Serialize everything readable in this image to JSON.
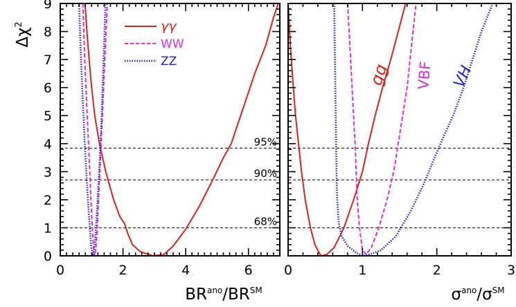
{
  "chart_data": [
    {
      "type": "line",
      "xlabel": "BR",
      "xlabel_sup": "ano",
      "xlabel_den": "BR",
      "xlabel_den_sup": "SM",
      "ylabel": "Δχ",
      "ylabel_sup": "2",
      "xlim": [
        0,
        7
      ],
      "ylim": [
        0,
        9
      ],
      "xticks": [
        0,
        2,
        4,
        6
      ],
      "yticks": [
        0,
        1,
        2,
        3,
        4,
        5,
        6,
        7,
        8,
        9
      ],
      "legend_position": "top-left",
      "series": [
        {
          "name": "γγ",
          "color": "#e0201c",
          "style": "solid",
          "points": [
            [
              0.79,
              9.0
            ],
            [
              0.85,
              8.0
            ],
            [
              0.92,
              7.0
            ],
            [
              1.0,
              6.0
            ],
            [
              1.1,
              5.0
            ],
            [
              1.25,
              4.0
            ],
            [
              1.45,
              3.0
            ],
            [
              1.7,
              2.0
            ],
            [
              1.9,
              1.4
            ],
            [
              2.05,
              1.15
            ],
            [
              2.15,
              0.8
            ],
            [
              2.3,
              0.4
            ],
            [
              2.55,
              0.15
            ],
            [
              2.95,
              0.0
            ],
            [
              3.3,
              0.04
            ],
            [
              3.6,
              0.35
            ],
            [
              4.0,
              0.95
            ],
            [
              4.45,
              1.8
            ],
            [
              4.9,
              2.8
            ],
            [
              5.2,
              3.5
            ],
            [
              5.45,
              4.0
            ],
            [
              5.75,
              5.0
            ],
            [
              6.05,
              6.0
            ],
            [
              6.2,
              6.5
            ],
            [
              6.55,
              7.5
            ],
            [
              6.8,
              8.5
            ],
            [
              6.95,
              9.0
            ]
          ]
        },
        {
          "name": "WW",
          "color": "#e22ed9",
          "style": "dashed",
          "points": [
            [
              0.72,
              9.0
            ],
            [
              0.75,
              8.0
            ],
            [
              0.78,
              7.0
            ],
            [
              0.82,
              6.0
            ],
            [
              0.86,
              5.0
            ],
            [
              0.9,
              4.0
            ],
            [
              0.94,
              3.0
            ],
            [
              0.98,
              2.0
            ],
            [
              1.02,
              1.0
            ],
            [
              1.06,
              0.3
            ],
            [
              1.1,
              0.0
            ],
            [
              1.14,
              0.3
            ],
            [
              1.18,
              1.0
            ],
            [
              1.22,
              2.0
            ],
            [
              1.26,
              3.0
            ],
            [
              1.3,
              4.0
            ],
            [
              1.34,
              5.0
            ],
            [
              1.38,
              6.0
            ],
            [
              1.42,
              7.0
            ],
            [
              1.46,
              8.0
            ],
            [
              1.5,
              9.0
            ]
          ]
        },
        {
          "name": "ZZ",
          "color": "#2222dd",
          "style": "dotted",
          "points": [
            [
              0.6,
              9.0
            ],
            [
              0.63,
              8.0
            ],
            [
              0.66,
              7.0
            ],
            [
              0.7,
              6.0
            ],
            [
              0.74,
              5.0
            ],
            [
              0.78,
              4.0
            ],
            [
              0.83,
              3.0
            ],
            [
              0.88,
              2.0
            ],
            [
              0.94,
              1.0
            ],
            [
              0.99,
              0.3
            ],
            [
              1.04,
              0.0
            ],
            [
              1.09,
              0.3
            ],
            [
              1.14,
              1.0
            ],
            [
              1.19,
              2.0
            ],
            [
              1.24,
              3.0
            ],
            [
              1.28,
              4.0
            ],
            [
              1.32,
              5.0
            ],
            [
              1.35,
              6.0
            ],
            [
              1.38,
              7.0
            ],
            [
              1.41,
              8.0
            ],
            [
              1.44,
              9.0
            ]
          ]
        }
      ],
      "cl_lines": [
        {
          "label": "95%",
          "value": 3.84
        },
        {
          "label": "90%",
          "value": 2.71
        },
        {
          "label": "68%",
          "value": 1.0
        }
      ]
    },
    {
      "type": "line",
      "xlabel": "σ",
      "xlabel_sup": "ano",
      "xlabel_den": "σ",
      "xlabel_den_sup": "SM",
      "xlim": [
        0,
        3
      ],
      "ylim": [
        0,
        9
      ],
      "xticks": [
        0,
        1,
        2,
        3
      ],
      "yticks": [
        0,
        1,
        2,
        3,
        4,
        5,
        6,
        7,
        8,
        9
      ],
      "series": [
        {
          "name": "gg",
          "color": "#e0201c",
          "style": "solid",
          "points": [
            [
              0.0,
              9.0
            ],
            [
              0.03,
              7.5
            ],
            [
              0.07,
              6.0
            ],
            [
              0.1,
              5.0
            ],
            [
              0.14,
              4.0
            ],
            [
              0.18,
              3.0
            ],
            [
              0.23,
              2.0
            ],
            [
              0.3,
              1.0
            ],
            [
              0.36,
              0.4
            ],
            [
              0.44,
              0.0
            ],
            [
              0.52,
              0.05
            ],
            [
              0.62,
              0.3
            ],
            [
              0.75,
              1.0
            ],
            [
              0.88,
              2.0
            ],
            [
              1.0,
              3.0
            ],
            [
              1.08,
              4.0
            ],
            [
              1.17,
              5.0
            ],
            [
              1.27,
              6.0
            ],
            [
              1.38,
              7.0
            ],
            [
              1.48,
              8.0
            ],
            [
              1.58,
              9.0
            ]
          ]
        },
        {
          "name": "VBF",
          "color": "#e22ed9",
          "style": "dashed",
          "points": [
            [
              0.8,
              9.0
            ],
            [
              0.82,
              8.0
            ],
            [
              0.84,
              7.0
            ],
            [
              0.86,
              6.0
            ],
            [
              0.88,
              5.0
            ],
            [
              0.9,
              4.0
            ],
            [
              0.93,
              2.0
            ],
            [
              0.96,
              1.0
            ],
            [
              1.0,
              0.2
            ],
            [
              1.05,
              0.05
            ],
            [
              1.12,
              0.3
            ],
            [
              1.22,
              1.0
            ],
            [
              1.33,
              2.0
            ],
            [
              1.42,
              3.0
            ],
            [
              1.48,
              4.0
            ],
            [
              1.54,
              5.0
            ],
            [
              1.6,
              6.0
            ],
            [
              1.64,
              7.0
            ],
            [
              1.68,
              8.0
            ],
            [
              1.72,
              9.0
            ]
          ]
        },
        {
          "name": "VH",
          "color": "#2222dd",
          "style": "dotted",
          "points": [
            [
              0.62,
              9.0
            ],
            [
              0.63,
              7.0
            ],
            [
              0.64,
              5.0
            ],
            [
              0.65,
              3.0
            ],
            [
              0.66,
              2.0
            ],
            [
              0.68,
              1.2
            ],
            [
              0.72,
              0.7
            ],
            [
              0.8,
              0.35
            ],
            [
              0.92,
              0.1
            ],
            [
              1.0,
              0.0
            ],
            [
              1.1,
              0.05
            ],
            [
              1.25,
              0.2
            ],
            [
              1.45,
              0.7
            ],
            [
              1.65,
              1.6
            ],
            [
              1.83,
              2.6
            ],
            [
              1.97,
              3.5
            ],
            [
              2.1,
              4.3
            ],
            [
              2.22,
              5.0
            ],
            [
              2.36,
              6.0
            ],
            [
              2.48,
              7.0
            ],
            [
              2.6,
              8.0
            ],
            [
              2.75,
              9.0
            ]
          ]
        }
      ],
      "cl_lines": [
        {
          "value": 3.84
        },
        {
          "value": 2.71
        },
        {
          "value": 1.0
        }
      ]
    }
  ]
}
